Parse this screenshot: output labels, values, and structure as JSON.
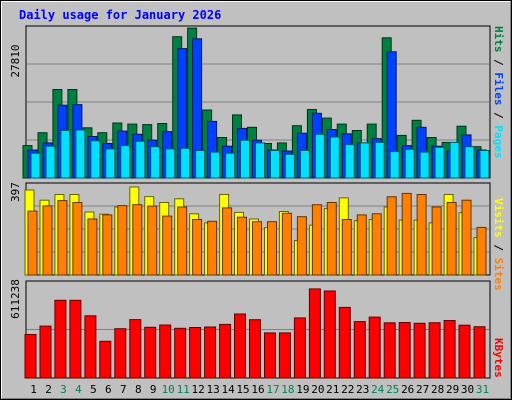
{
  "title": "Daily usage for January 2026",
  "colors": {
    "background": "#c0c0c0",
    "title": "#0000ff",
    "hits": "#008040",
    "files": "#0040ff",
    "pages": "#00e0ff",
    "visits": "#ffff00",
    "sites": "#ff8000",
    "kbytes": "#ff0000",
    "weekend_label": "#00805c",
    "weekday_label": "#000000"
  },
  "chart_data": [
    {
      "type": "bar",
      "panel": "hits-files-pages",
      "ymax_label": "27810",
      "ylim": [
        0,
        27810
      ],
      "series_labels": [
        "Pages",
        "Files",
        "Hits"
      ],
      "categories": [
        "1",
        "2",
        "3",
        "4",
        "5",
        "6",
        "7",
        "8",
        "9",
        "10",
        "11",
        "12",
        "13",
        "14",
        "15",
        "16",
        "17",
        "18",
        "19",
        "20",
        "21",
        "22",
        "23",
        "24",
        "25",
        "26",
        "27",
        "28",
        "29",
        "30",
        "31"
      ],
      "series": [
        {
          "name": "Hits",
          "values": [
            6000,
            8400,
            16400,
            16400,
            9300,
            8400,
            10200,
            10000,
            9900,
            10100,
            26200,
            27800,
            12600,
            7500,
            11700,
            9400,
            6400,
            6500,
            9700,
            12700,
            11100,
            10000,
            8800,
            10000,
            26000,
            7900,
            10700,
            7500,
            6600,
            9600,
            5800
          ]
        },
        {
          "name": "Files",
          "values": [
            5200,
            6500,
            13500,
            13600,
            7700,
            6400,
            8700,
            8100,
            7000,
            8600,
            24000,
            25800,
            10500,
            5900,
            9200,
            7000,
            5200,
            5000,
            8300,
            12000,
            9000,
            8200,
            6500,
            7300,
            23400,
            6000,
            9400,
            5900,
            5000,
            8000,
            5200
          ]
        },
        {
          "name": "Pages",
          "values": [
            4600,
            5900,
            8800,
            8900,
            6900,
            5400,
            6000,
            6800,
            5800,
            5400,
            5500,
            5100,
            4800,
            4600,
            7000,
            6500,
            5100,
            4400,
            5100,
            8100,
            7600,
            6200,
            6500,
            6600,
            4900,
            5300,
            4800,
            5700,
            6600,
            5800,
            5100
          ]
        }
      ]
    },
    {
      "type": "bar",
      "panel": "visits-sites",
      "ymax_label": "397",
      "ylim": [
        0,
        397
      ],
      "series_labels": [
        "Sites",
        "Visits"
      ],
      "categories": [
        "1",
        "2",
        "3",
        "4",
        "5",
        "6",
        "7",
        "8",
        "9",
        "10",
        "11",
        "12",
        "13",
        "14",
        "15",
        "16",
        "17",
        "18",
        "19",
        "20",
        "21",
        "22",
        "23",
        "24",
        "25",
        "26",
        "27",
        "28",
        "29",
        "30",
        "31"
      ],
      "series": [
        {
          "name": "Visits",
          "values": [
            375,
            330,
            355,
            355,
            278,
            268,
            300,
            388,
            346,
            320,
            336,
            270,
            230,
            355,
            276,
            247,
            209,
            280,
            152,
            220,
            293,
            340,
            240,
            245,
            300,
            242,
            242,
            230,
            355,
            275,
            165
          ]
        },
        {
          "name": "Sites",
          "values": [
            282,
            305,
            328,
            320,
            247,
            265,
            306,
            310,
            304,
            260,
            300,
            245,
            237,
            296,
            255,
            235,
            235,
            272,
            257,
            310,
            320,
            245,
            265,
            270,
            345,
            360,
            355,
            300,
            320,
            330,
            210
          ]
        }
      ]
    },
    {
      "type": "bar",
      "panel": "kbytes",
      "ymax_label": "611238",
      "ylim": [
        0,
        611238
      ],
      "series_labels": [
        "KBytes"
      ],
      "categories": [
        "1",
        "2",
        "3",
        "4",
        "5",
        "6",
        "7",
        "8",
        "9",
        "10",
        "11",
        "12",
        "13",
        "14",
        "15",
        "16",
        "17",
        "18",
        "19",
        "20",
        "21",
        "22",
        "23",
        "24",
        "25",
        "26",
        "27",
        "28",
        "29",
        "30",
        "31"
      ],
      "series": [
        {
          "name": "KBytes",
          "values": [
            280000,
            334000,
            500000,
            500000,
            400000,
            236000,
            317000,
            376000,
            326000,
            341000,
            320000,
            325000,
            328000,
            345000,
            412000,
            375000,
            290000,
            290000,
            387000,
            573000,
            560000,
            454000,
            363000,
            392000,
            355000,
            357000,
            352000,
            356000,
            370000,
            340000,
            330000
          ]
        }
      ]
    }
  ],
  "weekend_days": [
    "3",
    "4",
    "10",
    "11",
    "17",
    "18",
    "24",
    "25",
    "31"
  ]
}
